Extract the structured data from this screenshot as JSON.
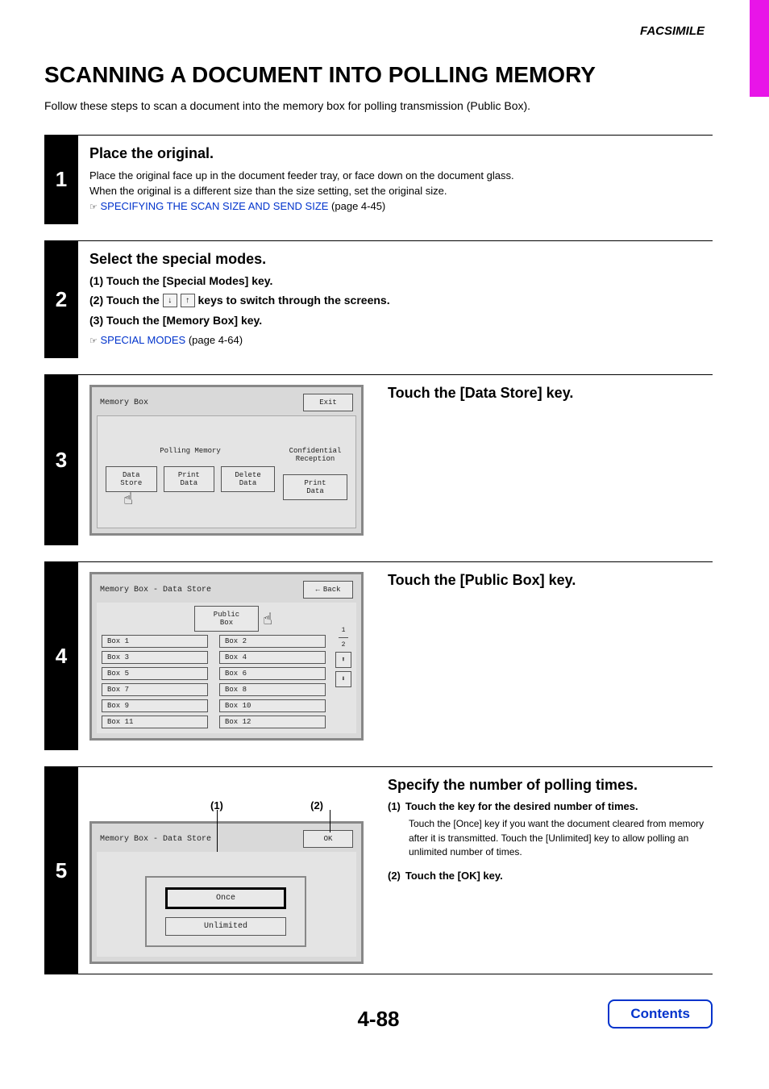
{
  "header_label": "FACSIMILE",
  "title": "SCANNING A DOCUMENT INTO POLLING MEMORY",
  "intro": "Follow these steps to scan a document into the memory box for polling transmission (Public Box).",
  "page_number": "4-88",
  "contents_label": "Contents",
  "steps": {
    "s1": {
      "num": "1",
      "heading": "Place the original.",
      "body1": "Place the original face up in the document feeder tray, or face down on the document glass.",
      "body2": "When the original is a different size than the size setting, set the original size.",
      "ref_icon": "☞",
      "link": "SPECIFYING THE SCAN SIZE AND SEND SIZE",
      "link_page": " (page 4-45)"
    },
    "s2": {
      "num": "2",
      "heading": "Select the special modes.",
      "sub1": "(1)  Touch the [Special Modes] key.",
      "sub2a": "(2)  Touch the ",
      "sub2b": " keys to switch through the screens.",
      "sub3": "(3)  Touch the [Memory Box] key.",
      "ref_icon": "☞",
      "link": "SPECIAL MODES",
      "link_page": " (page 4-64)"
    },
    "s3": {
      "num": "3",
      "heading": "Touch the [Data Store] key.",
      "lcd_title": "Memory Box",
      "exit": "Exit",
      "group_poll": "Polling Memory",
      "group_conf": "Confidential\nReception",
      "btn_data_store": "Data Store",
      "btn_print_data": "Print Data",
      "btn_delete_data": "Delete Data",
      "btn_print_data2": "Print Data"
    },
    "s4": {
      "num": "4",
      "heading": "Touch the [Public Box] key.",
      "lcd_title": "Memory Box - Data Store",
      "back": "Back",
      "public_box": "Public Box",
      "pager_top": "1",
      "pager_bot": "2",
      "boxes": [
        "Box 1",
        "Box 2",
        "Box 3",
        "Box 4",
        "Box 5",
        "Box 6",
        "Box 7",
        "Box 8",
        "Box 9",
        "Box 10",
        "Box 11",
        "Box 12"
      ]
    },
    "s5": {
      "num": "5",
      "heading": "Specify the number of polling times.",
      "callout1": "(1)",
      "callout2": "(2)",
      "lcd_title": "Memory Box - Data Store",
      "ok": "OK",
      "once": "Once",
      "unlimited": "Unlimited",
      "sub1_num": "(1)",
      "sub1": "Touch the key for the desired number of times.",
      "sub1_para": "Touch the [Once] key if you want the document cleared from memory after it is transmitted. Touch the [Unlimited] key to allow polling an unlimited number of times.",
      "sub2_num": "(2)",
      "sub2": "Touch the [OK] key."
    }
  }
}
